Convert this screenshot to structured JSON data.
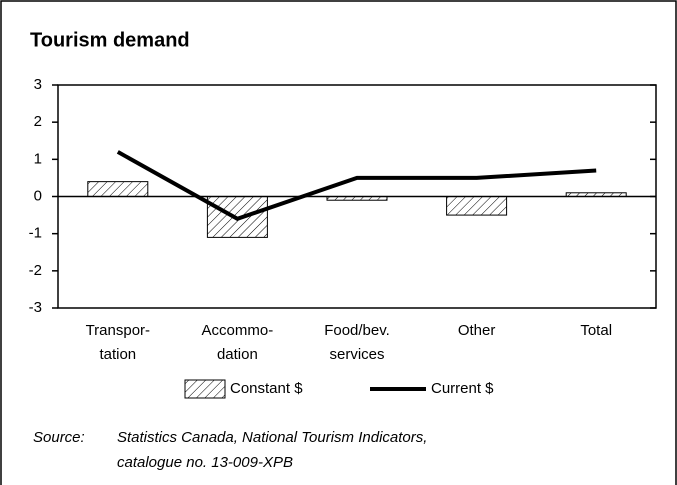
{
  "chart_data": {
    "type": "bar+line",
    "title": "Tourism demand",
    "categories": [
      [
        "Transpor-",
        "tation"
      ],
      [
        "Accommo-",
        "dation"
      ],
      [
        "Food/bev.",
        "services"
      ],
      [
        "Other"
      ],
      [
        "Total"
      ]
    ],
    "series": [
      {
        "name": "Constant $",
        "type": "bar",
        "color": "#000000",
        "values": [
          0.4,
          -1.1,
          -0.1,
          -0.5,
          0.1
        ]
      },
      {
        "name": "Current $",
        "type": "line",
        "color": "#000000",
        "values": [
          1.2,
          -0.6,
          0.5,
          0.5,
          0.7
        ]
      }
    ],
    "ylim": [
      -3,
      3
    ],
    "yticks": [
      -3,
      -2,
      -1,
      0,
      1,
      2,
      3
    ],
    "source": {
      "label": "Source:",
      "lines": [
        "Statistics Canada, National Tourism Indicators,",
        "catalogue no. 13-009-XPB"
      ]
    }
  }
}
